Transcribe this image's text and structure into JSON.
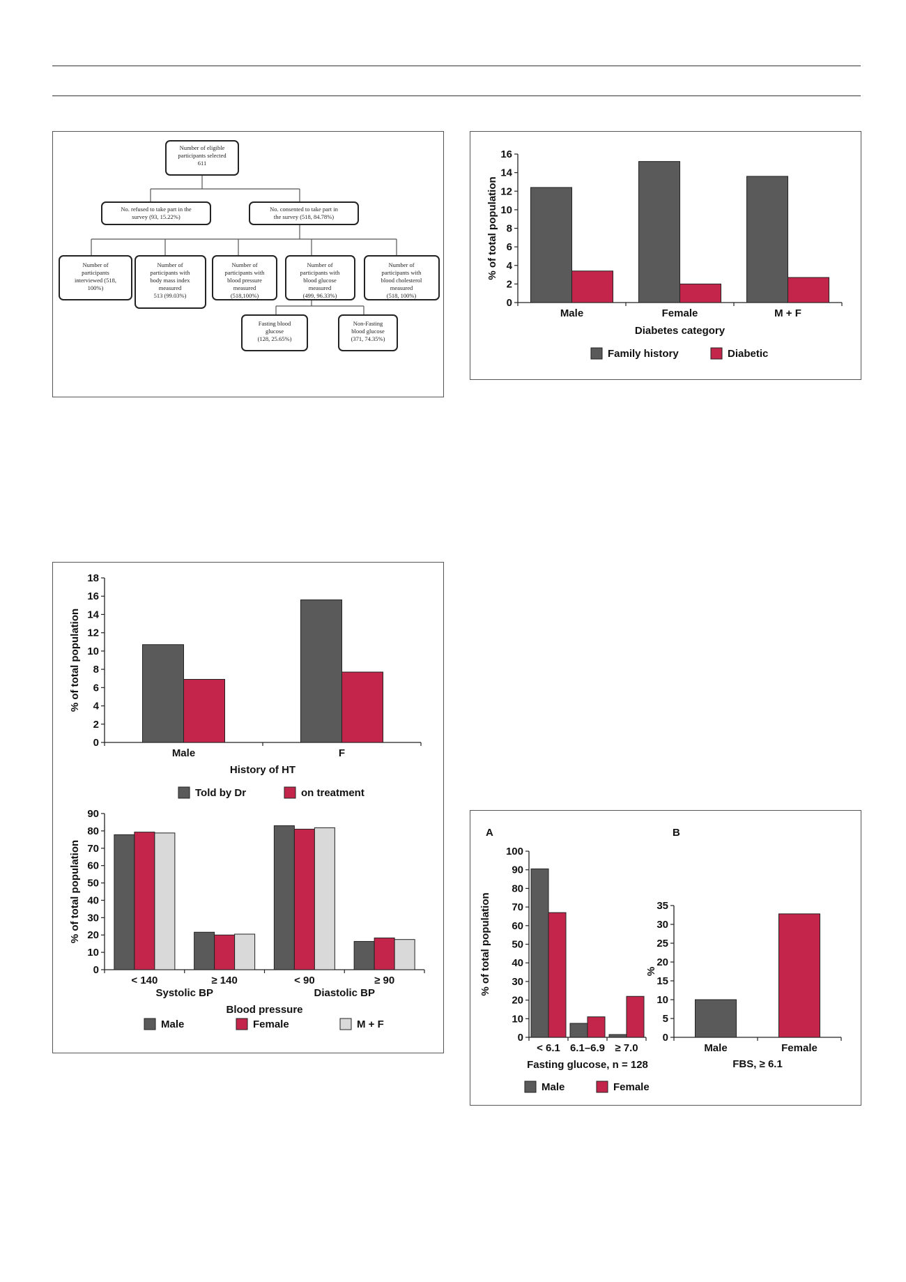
{
  "colors": {
    "dark": "#5a5a5a",
    "red": "#c4254a",
    "light": "#d9d9d9",
    "axis": "#222222"
  },
  "flowchart": {
    "top": "Number of eligible participants selected 611",
    "refused": "No. refused to take part in the survey (93, 15.22%)",
    "consented": "No. consented to take part in the survey (518, 84.78%)",
    "measures": [
      "Number of participants interviewed (518, 100%)",
      "Number of participants with body mass index measured 513 (99.03%)",
      "Number of participants with blood pressure measured (518,100%)",
      "Number of participants with blood glucose measured (499, 96.33%)",
      "Number of participants with blood cholesterol measured (518, 100%)"
    ],
    "glucose_split": [
      "Fasting blood glucose (128, 25.65%)",
      "Non-Fasting blood glucose (371, 74.35%)"
    ]
  },
  "chart_data": [
    {
      "id": "diabetes",
      "type": "bar",
      "categories": [
        "Male",
        "Female",
        "M + F"
      ],
      "series": [
        {
          "name": "Family history",
          "values": [
            12.4,
            15.2,
            13.6
          ],
          "color": "dark"
        },
        {
          "name": "Diabetic",
          "values": [
            3.4,
            2.0,
            2.7
          ],
          "color": "red"
        }
      ],
      "xlabel": "Diabetes category",
      "ylabel": "% of total population",
      "ylim": [
        0,
        16
      ],
      "yticks": [
        0,
        2,
        4,
        6,
        8,
        10,
        12,
        14,
        16
      ],
      "legend": "bottom"
    },
    {
      "id": "history_ht",
      "type": "bar",
      "categories": [
        "Male",
        "F"
      ],
      "series": [
        {
          "name": "Told by Dr",
          "values": [
            10.7,
            15.6
          ],
          "color": "dark"
        },
        {
          "name": "on treatment",
          "values": [
            6.9,
            7.7
          ],
          "color": "red"
        }
      ],
      "xlabel": "History of HT",
      "ylabel": "% of total population",
      "ylim": [
        0,
        18
      ],
      "yticks": [
        0,
        2,
        4,
        6,
        8,
        10,
        12,
        14,
        16,
        18
      ],
      "legend": "bottom"
    },
    {
      "id": "blood_pressure",
      "type": "bar",
      "categories": [
        "< 140",
        "≥ 140",
        "< 90",
        "≥ 90"
      ],
      "group_labels": [
        "Systolic BP",
        "Diastolic BP"
      ],
      "series": [
        {
          "name": "Male",
          "values": [
            77.8,
            21.6,
            83.0,
            16.3
          ],
          "color": "dark"
        },
        {
          "name": "Female",
          "values": [
            79.3,
            20.0,
            81.0,
            18.3
          ],
          "color": "red"
        },
        {
          "name": "M + F",
          "values": [
            78.8,
            20.5,
            81.8,
            17.4
          ],
          "color": "light"
        }
      ],
      "xlabel": "Blood pressure",
      "ylabel": "% of total population",
      "ylim": [
        0,
        90
      ],
      "yticks": [
        0,
        10,
        20,
        30,
        40,
        50,
        60,
        70,
        80,
        90
      ],
      "legend": "bottom"
    },
    {
      "id": "fasting_glucose",
      "panel_label": "A",
      "type": "bar",
      "categories": [
        "< 6.1",
        "6.1–6.9",
        "≥ 7.0"
      ],
      "series": [
        {
          "name": "Male",
          "values": [
            90.5,
            7.5,
            1.5
          ],
          "color": "dark"
        },
        {
          "name": "Female",
          "values": [
            67.0,
            11.0,
            22.0
          ],
          "color": "red"
        }
      ],
      "xlabel": "Fasting glucose, n = 128",
      "ylabel": "% of total population",
      "ylim": [
        0,
        100
      ],
      "yticks": [
        0,
        10,
        20,
        30,
        40,
        50,
        60,
        70,
        80,
        90,
        100
      ],
      "legend": "bottom"
    },
    {
      "id": "fbs",
      "panel_label": "B",
      "type": "bar",
      "categories": [
        "Male",
        "Female"
      ],
      "series": [
        {
          "name": "",
          "values": [
            10.0,
            32.8
          ],
          "colors": [
            "dark",
            "red"
          ]
        }
      ],
      "xlabel": "FBS, ≥ 6.1",
      "ylabel": "%",
      "ylim": [
        0,
        35
      ],
      "yticks": [
        0,
        5,
        10,
        15,
        20,
        25,
        30,
        35
      ]
    }
  ]
}
